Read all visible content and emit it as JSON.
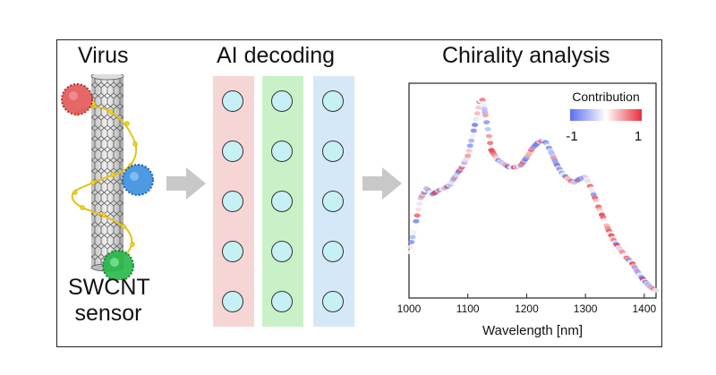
{
  "titles": {
    "virus": "Virus",
    "ai_decoding": "AI decoding",
    "chirality_analysis": "Chirality analysis"
  },
  "sensor": {
    "line1": "SWCNT",
    "line2": "sensor",
    "virus_colors": [
      "#e35757",
      "#3a8fe0",
      "#26b84a"
    ]
  },
  "network": {
    "layer_colors": [
      "#f6d6d5",
      "#c9f1c7",
      "#d5e8f8"
    ],
    "nodes_per_layer": 5
  },
  "chart_data": {
    "type": "scatter",
    "title": "",
    "xlabel": "Wavelength [nm]",
    "ylabel": "",
    "xlim": [
      1000,
      1420
    ],
    "ylim": [
      0,
      1.05
    ],
    "xticks": [
      "1000",
      "1100",
      "1200",
      "1300",
      "1400"
    ],
    "xtick_values": [
      1000,
      1100,
      1200,
      1300,
      1400
    ],
    "colorbar": {
      "label": "Contribution",
      "min_label": "-1",
      "max_label": "1",
      "min_color": "#5b6ef0",
      "mid_color": "#ffffff",
      "max_color": "#e8303a"
    },
    "curve": {
      "x": [
        1000,
        1010,
        1020,
        1030,
        1040,
        1050,
        1060,
        1070,
        1080,
        1090,
        1100,
        1110,
        1120,
        1125,
        1130,
        1140,
        1150,
        1160,
        1170,
        1180,
        1190,
        1200,
        1210,
        1220,
        1230,
        1240,
        1250,
        1260,
        1270,
        1280,
        1290,
        1300,
        1310,
        1320,
        1330,
        1340,
        1350,
        1360,
        1370,
        1380,
        1390,
        1400,
        1410,
        1420
      ],
      "y": [
        0.22,
        0.35,
        0.5,
        0.55,
        0.52,
        0.54,
        0.55,
        0.57,
        0.62,
        0.66,
        0.72,
        0.85,
        1.0,
        1.01,
        0.93,
        0.75,
        0.7,
        0.68,
        0.66,
        0.66,
        0.67,
        0.71,
        0.76,
        0.79,
        0.8,
        0.75,
        0.68,
        0.63,
        0.6,
        0.58,
        0.6,
        0.61,
        0.55,
        0.47,
        0.4,
        0.33,
        0.27,
        0.23,
        0.19,
        0.16,
        0.11,
        0.07,
        0.04,
        0.02
      ]
    }
  }
}
